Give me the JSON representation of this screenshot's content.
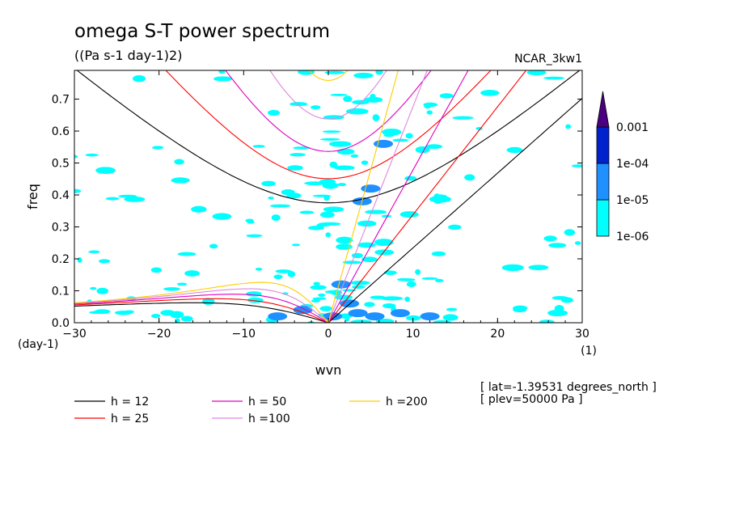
{
  "title": "omega S-T power spectrum",
  "units": "((Pa s-1 day-1)2)",
  "case_name": "NCAR_3kw1",
  "meta": {
    "lat": "[ lat=-1.39531 degrees_north ]",
    "plev": "[ plev=50000 Pa ]"
  },
  "chart_data": {
    "type": "heatmap",
    "xlabel": "wvn",
    "ylabel": "freq",
    "x_unit": "(1)",
    "y_unit": "(day-1)",
    "xlim": [
      -30,
      30
    ],
    "ylim": [
      0,
      0.79
    ],
    "xticks": [
      -30,
      -20,
      -10,
      0,
      10,
      20,
      30
    ],
    "yticks": [
      0.0,
      0.1,
      0.2,
      0.3,
      0.4,
      0.5,
      0.6,
      0.7
    ],
    "colorbar": {
      "levels": [
        "1e-06",
        "1e-05",
        "1e-04",
        "0.001"
      ],
      "colors": [
        "#00ffff",
        "#1e90ff",
        "#0022cc",
        "#4b0082"
      ]
    },
    "dispersion_curves": [
      {
        "name": "h = 12",
        "h": 12,
        "color": "#000000"
      },
      {
        "name": "h = 25",
        "h": 25,
        "color": "#ff0000"
      },
      {
        "name": "h = 50",
        "h": 50,
        "color": "#e000c0"
      },
      {
        "name": "h =100",
        "h": 100,
        "color": "#dd88dd"
      },
      {
        "name": "h =200",
        "h": 200,
        "color": "#ffcc00"
      }
    ],
    "power_blobs": [
      {
        "x": 0.5,
        "y": 0.02,
        "level": 2
      },
      {
        "x": 3.5,
        "y": 0.03,
        "level": 2
      },
      {
        "x": 5.5,
        "y": 0.02,
        "level": 2
      },
      {
        "x": 8.5,
        "y": 0.03,
        "level": 2
      },
      {
        "x": -3,
        "y": 0.04,
        "level": 2
      },
      {
        "x": -6,
        "y": 0.02,
        "level": 2
      },
      {
        "x": 1.5,
        "y": 0.12,
        "level": 2
      },
      {
        "x": 4,
        "y": 0.38,
        "level": 2
      },
      {
        "x": 5,
        "y": 0.42,
        "level": 2
      },
      {
        "x": 6.5,
        "y": 0.56,
        "level": 2
      },
      {
        "x": 2.5,
        "y": 0.06,
        "level": 2
      },
      {
        "x": 12,
        "y": 0.02,
        "level": 2
      }
    ]
  }
}
